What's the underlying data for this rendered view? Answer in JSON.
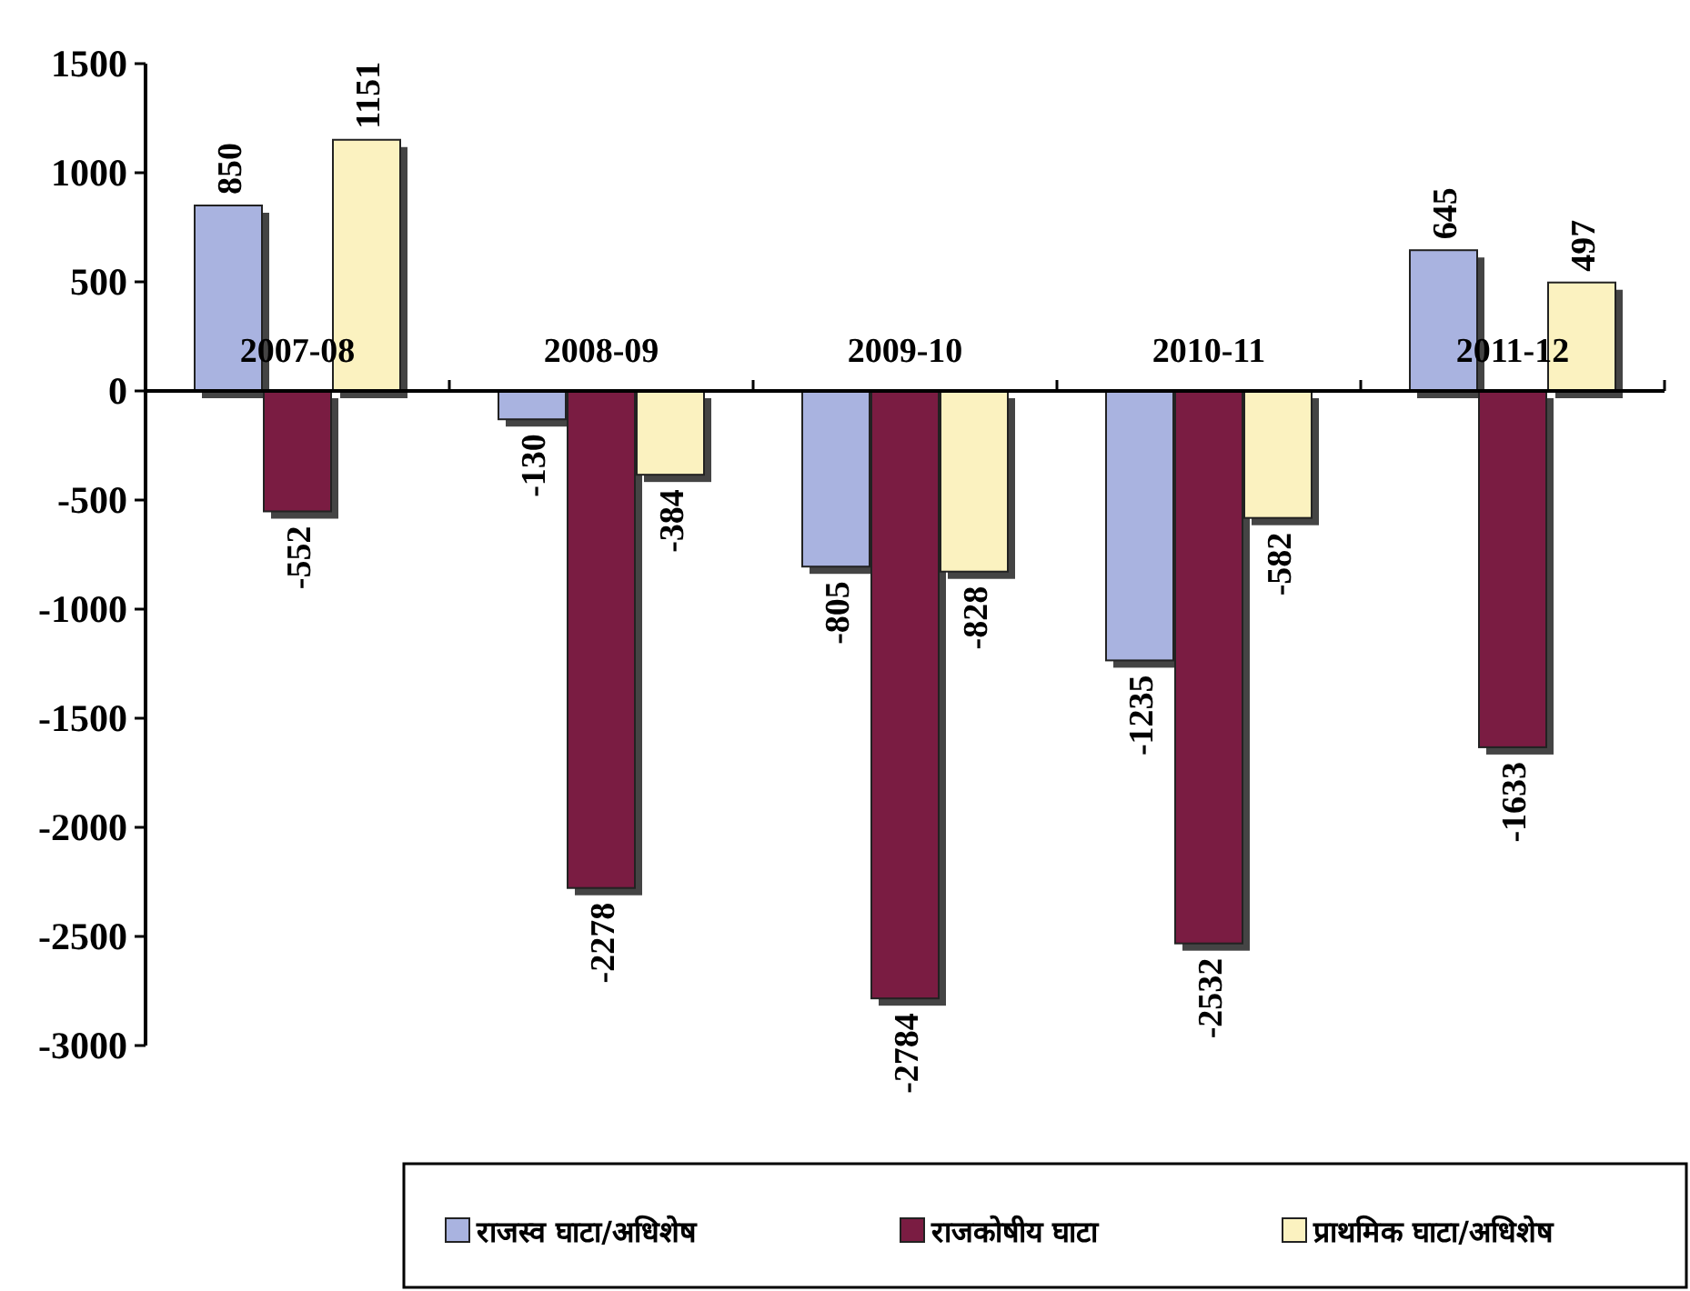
{
  "chart_data": {
    "type": "bar",
    "categories": [
      "2007-08",
      "2008-09",
      "2009-10",
      "2010-11",
      "2011-12"
    ],
    "series": [
      {
        "name": "राजस्व घाटा/अधिशेष",
        "color": "#a9b3e0",
        "values": [
          850,
          -130,
          -805,
          -1235,
          645
        ]
      },
      {
        "name": "राजकोषीय घाटा",
        "color": "#7a1c42",
        "values": [
          -552,
          -2278,
          -2784,
          -2532,
          -1633
        ]
      },
      {
        "name": "प्राथमिक घाटा/अधिशेष",
        "color": "#fbf2c0",
        "values": [
          1151,
          -384,
          -828,
          -582,
          497
        ]
      }
    ],
    "ylim": [
      -3000,
      1500
    ],
    "yticks": [
      -3000,
      -2500,
      -2000,
      -1500,
      -1000,
      -500,
      0,
      500,
      1000,
      1500
    ],
    "data_labels": true,
    "legend": "bottom",
    "grid": false
  }
}
